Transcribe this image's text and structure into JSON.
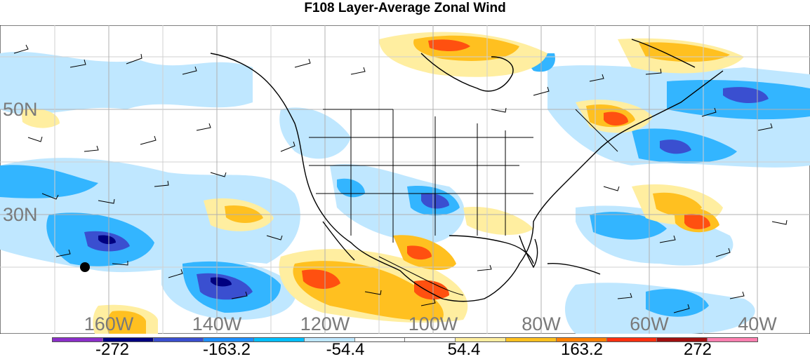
{
  "title": "F108 Layer-Average Zonal Wind",
  "lat_labels": [
    "50N",
    "30N"
  ],
  "lon_labels": [
    "160W",
    "140W",
    "120W",
    "100W",
    "80W",
    "60W",
    "40W"
  ],
  "colorbar": {
    "colors": [
      "#8b2fc9",
      "#000080",
      "#3a4fd0",
      "#1e90ff",
      "#00bfff",
      "#bfe7ff",
      "#ffffff",
      "#ffffff",
      "#ffeea0",
      "#ffc020",
      "#ff8000",
      "#ff3010",
      "#a01010",
      "#ff80b0"
    ],
    "labels": [
      "-272",
      "-163.2",
      "-54.4",
      "54.4",
      "163.2",
      "272"
    ]
  },
  "marker": "black-dot"
}
